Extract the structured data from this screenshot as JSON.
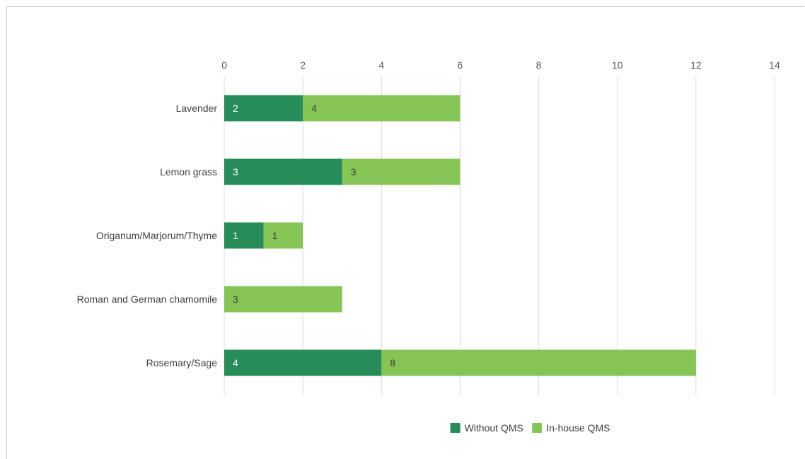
{
  "chart_data": {
    "type": "bar",
    "orientation": "horizontal",
    "stacked": true,
    "categories": [
      "Lavender",
      "Lemon grass",
      "Origanum/Marjorum/Thyme",
      "Roman and German chamomile",
      "Rosemary/Sage"
    ],
    "series": [
      {
        "name": "Without QMS",
        "values": [
          2,
          3,
          1,
          0,
          4
        ],
        "color": "#268c5a",
        "label_color": "#ffffff"
      },
      {
        "name": "In-house QMS",
        "values": [
          4,
          3,
          1,
          3,
          8
        ],
        "color": "#84c556",
        "label_color": "#404040"
      }
    ],
    "xlim": [
      0,
      14
    ],
    "x_ticks": [
      0,
      2,
      4,
      6,
      8,
      10,
      12,
      14
    ],
    "x_axis_position": "top",
    "grid": true,
    "legend_position": "bottom"
  }
}
